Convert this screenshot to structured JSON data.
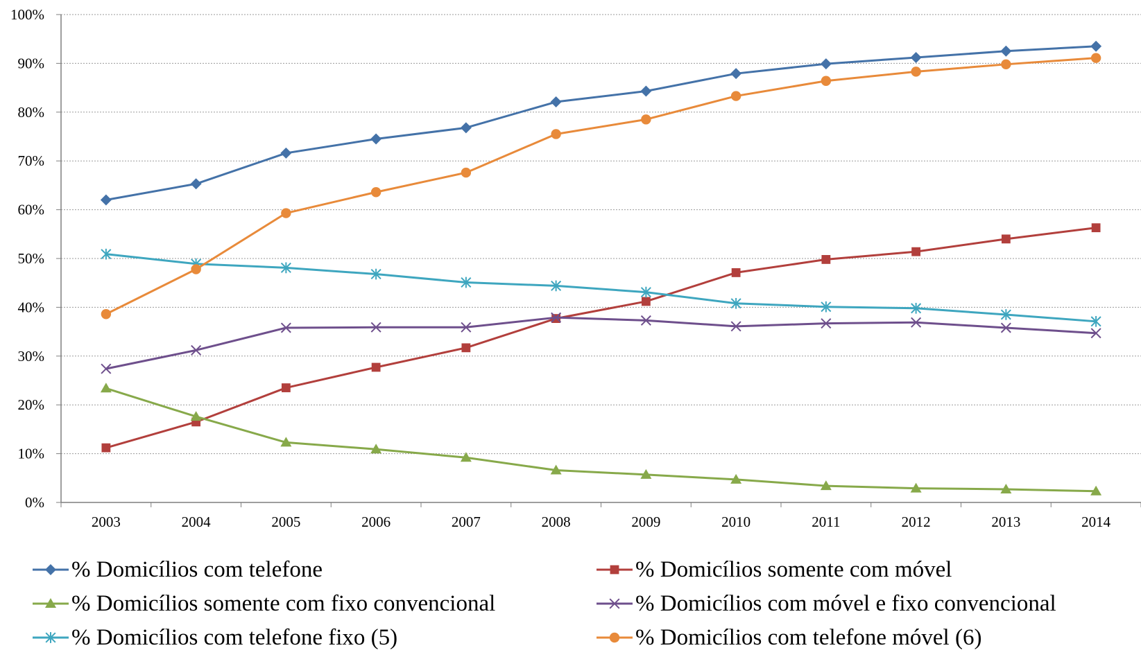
{
  "chart_data": {
    "type": "line",
    "title": "",
    "xlabel": "",
    "ylabel": "",
    "categories": [
      "2003",
      "2004",
      "2005",
      "2006",
      "2007",
      "2008",
      "2009",
      "2010",
      "2011",
      "2012",
      "2013",
      "2014"
    ],
    "ylim": [
      0,
      100
    ],
    "yticks": [
      0,
      10,
      20,
      30,
      40,
      50,
      60,
      70,
      80,
      90,
      100
    ],
    "ytick_labels": [
      "0%",
      "10%",
      "20%",
      "30%",
      "40%",
      "50%",
      "60%",
      "70%",
      "80%",
      "90%",
      "100%"
    ],
    "grid": true,
    "legend_position": "bottom",
    "series": [
      {
        "name": "% Domicílios com telefone",
        "color": "#4472a8",
        "marker": "diamond",
        "values": [
          62.0,
          65.3,
          71.6,
          74.5,
          76.8,
          82.1,
          84.3,
          87.9,
          89.9,
          91.2,
          92.5,
          93.5
        ]
      },
      {
        "name": "% Domicílios somente com móvel",
        "color": "#b23f3c",
        "marker": "square",
        "values": [
          11.2,
          16.5,
          23.5,
          27.7,
          31.7,
          37.7,
          41.2,
          47.1,
          49.8,
          51.4,
          54.0,
          56.3
        ]
      },
      {
        "name": " % Domicílios somente com fixo convencional",
        "color": "#87a94a",
        "marker": "triangle",
        "values": [
          23.4,
          17.6,
          12.3,
          10.9,
          9.2,
          6.6,
          5.7,
          4.7,
          3.4,
          2.9,
          2.7,
          2.3
        ]
      },
      {
        "name": " % Domicílios com móvel e fixo convencional",
        "color": "#6e4f8c",
        "marker": "x",
        "values": [
          27.4,
          31.2,
          35.8,
          35.9,
          35.9,
          37.9,
          37.3,
          36.1,
          36.7,
          36.9,
          35.8,
          34.7
        ]
      },
      {
        "name": "% Domicílios com telefone fixo (5)",
        "color": "#3ea6bf",
        "marker": "asterisk",
        "values": [
          50.9,
          48.9,
          48.1,
          46.8,
          45.1,
          44.4,
          43.1,
          40.8,
          40.1,
          39.8,
          38.5,
          37.1
        ]
      },
      {
        "name": "% Domicílios com telefone móvel (6)",
        "color": "#e88a3a",
        "marker": "circle",
        "values": [
          38.6,
          47.8,
          59.3,
          63.6,
          67.6,
          75.5,
          78.5,
          83.3,
          86.4,
          88.3,
          89.8,
          91.1
        ]
      }
    ]
  }
}
